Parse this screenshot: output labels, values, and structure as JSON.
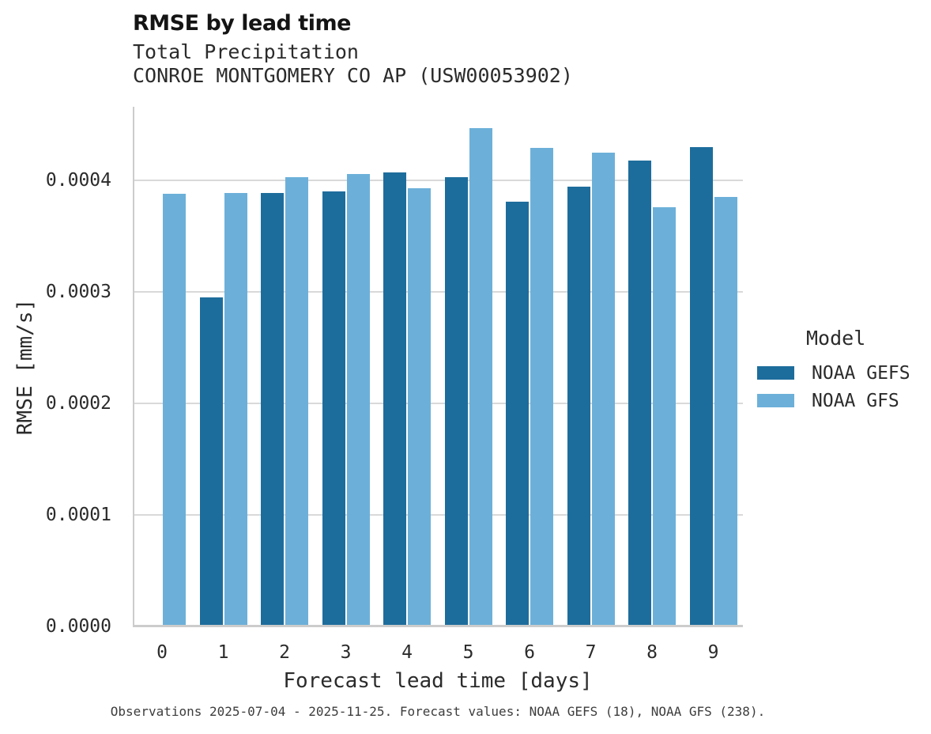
{
  "header": {
    "title": "RMSE by lead time",
    "subtitle1": "Total Precipitation",
    "subtitle2": "CONROE MONTGOMERY CO AP (USW00053902)"
  },
  "chart_data": {
    "type": "bar",
    "title": "RMSE by lead time",
    "subtitle": [
      "Total Precipitation",
      "CONROE MONTGOMERY CO AP (USW00053902)"
    ],
    "xlabel": "Forecast lead time [days]",
    "ylabel": "RMSE [mm/s]",
    "categories": [
      "0",
      "1",
      "2",
      "3",
      "4",
      "5",
      "6",
      "7",
      "8",
      "9"
    ],
    "series": [
      {
        "name": "NOAA GEFS",
        "color": "#1d6d9c",
        "values": [
          null,
          0.000295,
          0.000389,
          0.00039,
          0.000407,
          0.000403,
          0.000381,
          0.000394,
          0.000418,
          0.00043
        ]
      },
      {
        "name": "NOAA GFS",
        "color": "#6cb0d9",
        "values": [
          0.000388,
          0.000389,
          0.000403,
          0.000406,
          0.000393,
          0.000447,
          0.000429,
          0.000425,
          0.000376,
          0.000385
        ]
      }
    ],
    "ylim": [
      0,
      0.00045
    ],
    "ytick_values": [
      0,
      0.0001,
      0.0002,
      0.0003,
      0.0004
    ],
    "ytick_labels": [
      "0.0000",
      "0.0001",
      "0.0002",
      "0.0003",
      "0.0004"
    ],
    "grid": true,
    "legend_title": "Model",
    "legend_position": "right",
    "gridline_color": "#d9d9d9",
    "axis_color": "#cccccc"
  },
  "legend": {
    "title": "Model",
    "items": [
      {
        "label": "NOAA GEFS",
        "color": "#1d6d9c"
      },
      {
        "label": "NOAA GFS",
        "color": "#6cb0d9"
      }
    ]
  },
  "caption": "Observations 2025-07-04 - 2025-11-25. Forecast values: NOAA GEFS (18), NOAA GFS (238)."
}
